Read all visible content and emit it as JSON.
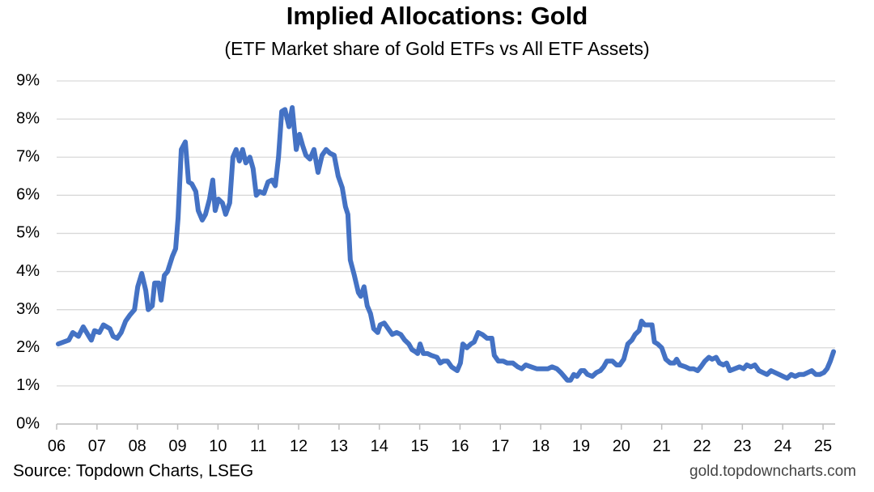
{
  "chart_data": {
    "type": "line",
    "title": "Implied Allocations: Gold",
    "subtitle": "(ETF Market share of Gold ETFs vs All ETF Assets)",
    "source": "Source: Topdown Charts, LSEG",
    "watermark": "gold.topdowncharts.com",
    "grid": true,
    "xlim": [
      2006,
      2025.3
    ],
    "ylim": [
      0,
      9
    ],
    "xticks": [
      {
        "value": 2006,
        "label": "06"
      },
      {
        "value": 2007,
        "label": "07"
      },
      {
        "value": 2008,
        "label": "08"
      },
      {
        "value": 2009,
        "label": "09"
      },
      {
        "value": 2010,
        "label": "10"
      },
      {
        "value": 2011,
        "label": "11"
      },
      {
        "value": 2012,
        "label": "12"
      },
      {
        "value": 2013,
        "label": "13"
      },
      {
        "value": 2014,
        "label": "14"
      },
      {
        "value": 2015,
        "label": "15"
      },
      {
        "value": 2016,
        "label": "16"
      },
      {
        "value": 2017,
        "label": "17"
      },
      {
        "value": 2018,
        "label": "18"
      },
      {
        "value": 2019,
        "label": "19"
      },
      {
        "value": 2020,
        "label": "20"
      },
      {
        "value": 2021,
        "label": "21"
      },
      {
        "value": 2022,
        "label": "22"
      },
      {
        "value": 2023,
        "label": "23"
      },
      {
        "value": 2024,
        "label": "24"
      },
      {
        "value": 2025,
        "label": "25"
      }
    ],
    "yticks": [
      {
        "value": 0,
        "label": "0%"
      },
      {
        "value": 1,
        "label": "1%"
      },
      {
        "value": 2,
        "label": "2%"
      },
      {
        "value": 3,
        "label": "3%"
      },
      {
        "value": 4,
        "label": "4%"
      },
      {
        "value": 5,
        "label": "5%"
      },
      {
        "value": 6,
        "label": "6%"
      },
      {
        "value": 7,
        "label": "7%"
      },
      {
        "value": 8,
        "label": "8%"
      },
      {
        "value": 9,
        "label": "9%"
      }
    ],
    "x": [
      2006.04,
      2006.3,
      2006.4,
      2006.54,
      2006.66,
      2006.8,
      2006.86,
      2006.94,
      2007.06,
      2007.16,
      2007.32,
      2007.4,
      2007.5,
      2007.6,
      2007.71,
      2007.81,
      2007.93,
      2008.01,
      2008.11,
      2008.21,
      2008.27,
      2008.37,
      2008.43,
      2008.53,
      2008.59,
      2008.67,
      2008.75,
      2008.87,
      2008.95,
      2009.01,
      2009.09,
      2009.19,
      2009.27,
      2009.35,
      2009.45,
      2009.51,
      2009.61,
      2009.69,
      2009.79,
      2009.87,
      2009.93,
      2010.01,
      2010.11,
      2010.19,
      2010.29,
      2010.37,
      2010.45,
      2010.53,
      2010.61,
      2010.69,
      2010.79,
      2010.87,
      2010.95,
      2011.03,
      2011.14,
      2011.24,
      2011.34,
      2011.42,
      2011.5,
      2011.58,
      2011.66,
      2011.76,
      2011.84,
      2011.94,
      2012.02,
      2012.1,
      2012.18,
      2012.28,
      2012.38,
      2012.48,
      2012.58,
      2012.68,
      2012.78,
      2012.88,
      2012.98,
      2013.08,
      2013.16,
      2013.22,
      2013.28,
      2013.38,
      2013.48,
      2013.54,
      2013.62,
      2013.7,
      2013.78,
      2013.86,
      2013.96,
      2014.02,
      2014.12,
      2014.22,
      2014.32,
      2014.43,
      2014.53,
      2014.63,
      2014.73,
      2014.81,
      2014.89,
      2014.95,
      2015.01,
      2015.09,
      2015.19,
      2015.29,
      2015.43,
      2015.51,
      2015.59,
      2015.69,
      2015.79,
      2015.93,
      2016.01,
      2016.07,
      2016.17,
      2016.27,
      2016.35,
      2016.45,
      2016.55,
      2016.67,
      2016.79,
      2016.85,
      2016.95,
      2017.07,
      2017.17,
      2017.31,
      2017.43,
      2017.53,
      2017.63,
      2017.76,
      2017.9,
      2018.04,
      2018.18,
      2018.28,
      2018.4,
      2018.5,
      2018.58,
      2018.66,
      2018.74,
      2018.82,
      2018.9,
      2019.0,
      2019.08,
      2019.16,
      2019.28,
      2019.38,
      2019.48,
      2019.56,
      2019.64,
      2019.78,
      2019.88,
      2019.96,
      2020.06,
      2020.16,
      2020.26,
      2020.34,
      2020.44,
      2020.5,
      2020.58,
      2020.68,
      2020.76,
      2020.82,
      2020.9,
      2021.0,
      2021.1,
      2021.21,
      2021.31,
      2021.37,
      2021.45,
      2021.59,
      2021.69,
      2021.79,
      2021.89,
      2021.97,
      2022.07,
      2022.17,
      2022.25,
      2022.35,
      2022.43,
      2022.53,
      2022.61,
      2022.69,
      2022.81,
      2022.93,
      2023.03,
      2023.11,
      2023.21,
      2023.31,
      2023.41,
      2023.51,
      2023.61,
      2023.71,
      2023.81,
      2023.91,
      2024.01,
      2024.11,
      2024.21,
      2024.31,
      2024.41,
      2024.52,
      2024.62,
      2024.72,
      2024.82,
      2024.92,
      2025.02,
      2025.1,
      2025.18,
      2025.26
    ],
    "series": [
      {
        "name": "Gold ETF market share",
        "color": "#4472c4",
        "values": [
          2.1,
          2.2,
          2.4,
          2.3,
          2.55,
          2.3,
          2.2,
          2.45,
          2.4,
          2.6,
          2.5,
          2.3,
          2.25,
          2.4,
          2.7,
          2.85,
          3.0,
          3.6,
          3.95,
          3.5,
          3.0,
          3.1,
          3.7,
          3.7,
          3.25,
          3.9,
          4.0,
          4.4,
          4.6,
          5.4,
          7.2,
          7.4,
          6.35,
          6.3,
          6.1,
          5.6,
          5.35,
          5.5,
          5.9,
          6.4,
          5.6,
          5.9,
          5.8,
          5.5,
          5.8,
          7.0,
          7.2,
          6.9,
          7.2,
          6.85,
          7.0,
          6.7,
          6.0,
          6.1,
          6.05,
          6.35,
          6.4,
          6.25,
          7.0,
          8.2,
          8.25,
          7.8,
          8.3,
          7.2,
          7.6,
          7.3,
          7.05,
          6.95,
          7.2,
          6.6,
          7.05,
          7.2,
          7.1,
          7.05,
          6.5,
          6.2,
          5.7,
          5.5,
          4.3,
          3.9,
          3.45,
          3.35,
          3.6,
          3.1,
          2.9,
          2.5,
          2.4,
          2.6,
          2.65,
          2.5,
          2.35,
          2.4,
          2.35,
          2.2,
          2.1,
          1.95,
          1.9,
          1.85,
          2.1,
          1.85,
          1.85,
          1.8,
          1.75,
          1.6,
          1.65,
          1.65,
          1.5,
          1.4,
          1.6,
          2.1,
          2.0,
          2.1,
          2.15,
          2.4,
          2.35,
          2.25,
          2.25,
          1.8,
          1.65,
          1.65,
          1.6,
          1.6,
          1.5,
          1.45,
          1.55,
          1.5,
          1.45,
          1.45,
          1.45,
          1.5,
          1.45,
          1.35,
          1.25,
          1.15,
          1.15,
          1.3,
          1.25,
          1.4,
          1.4,
          1.3,
          1.25,
          1.35,
          1.4,
          1.5,
          1.65,
          1.65,
          1.55,
          1.55,
          1.7,
          2.1,
          2.2,
          2.35,
          2.45,
          2.7,
          2.6,
          2.6,
          2.6,
          2.15,
          2.1,
          2.0,
          1.7,
          1.6,
          1.6,
          1.7,
          1.55,
          1.5,
          1.45,
          1.45,
          1.4,
          1.5,
          1.65,
          1.75,
          1.7,
          1.75,
          1.6,
          1.55,
          1.6,
          1.4,
          1.45,
          1.5,
          1.45,
          1.55,
          1.5,
          1.55,
          1.4,
          1.35,
          1.3,
          1.4,
          1.35,
          1.3,
          1.25,
          1.2,
          1.3,
          1.25,
          1.3,
          1.3,
          1.35,
          1.4,
          1.3,
          1.3,
          1.35,
          1.45,
          1.65,
          1.9
        ]
      }
    ]
  }
}
